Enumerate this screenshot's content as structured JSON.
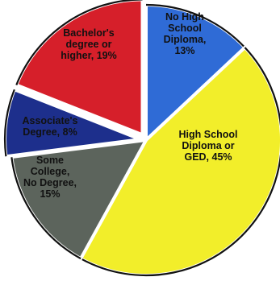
{
  "chart_data": {
    "type": "pie",
    "start_angle_deg": 0,
    "direction": "clockwise",
    "slices": [
      {
        "key": "no-high-school-diploma",
        "label_lines": [
          "No High",
          "School",
          "Diploma,",
          "13%"
        ],
        "value": 13,
        "color": "#2f6bd6"
      },
      {
        "key": "high-school-diploma-or-ged",
        "label_lines": [
          "High School",
          "Diploma or",
          "GED, 45%"
        ],
        "value": 45,
        "color": "#f2ee2a"
      },
      {
        "key": "some-college-no-degree",
        "label_lines": [
          "Some",
          "College,",
          "No Degree,",
          "15%"
        ],
        "value": 15,
        "color": "#5c645c"
      },
      {
        "key": "associates-degree",
        "label_lines": [
          "Associate's",
          "Degree, 8%"
        ],
        "value": 8,
        "color": "#1d2f8c"
      },
      {
        "key": "bachelors-degree-or-higher",
        "label_lines": [
          "Bachelor's",
          "degree or",
          "higher, 19%"
        ],
        "value": 19,
        "color": "#d61f2a"
      }
    ]
  }
}
